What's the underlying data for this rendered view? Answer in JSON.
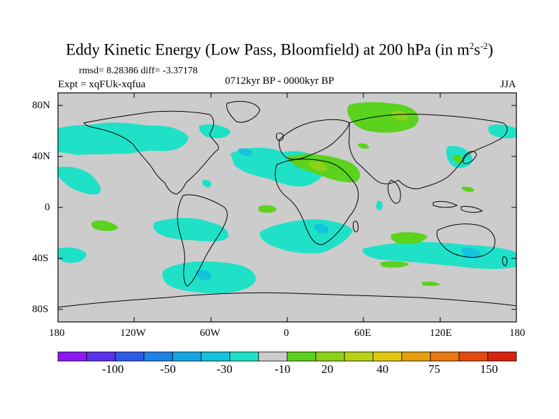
{
  "title": {
    "main": "Eddy Kinetic Energy (Low Pass, Bloomfield) at 200 hPa (in m",
    "sup1": "2",
    "mid": "s",
    "sup2": "-2",
    "close": ")"
  },
  "stats": "rmsd= 8.28386 diff= -3.37178",
  "experiment": "Expt = xqFUk-xqfua",
  "period": "0712kyr BP - 0000kyr BP",
  "season": "JJA",
  "lat_labels": [
    "80N",
    "40N",
    "0",
    "40S",
    "80S"
  ],
  "lon_labels": [
    "180",
    "120W",
    "60W",
    "0",
    "60E",
    "120E",
    "180"
  ],
  "colorbar": {
    "colors": [
      "#8c19f0",
      "#5a32eb",
      "#2d5ae6",
      "#1e82e6",
      "#14a5e1",
      "#14c3dc",
      "#1ee1c8",
      "#cccccc",
      "#5ad21e",
      "#8cd219",
      "#b9d214",
      "#e1c80f",
      "#e6a00f",
      "#e6780f",
      "#e14b0f",
      "#d7230f"
    ],
    "labels": [
      "-100",
      "-50",
      "-30",
      "-10",
      "20",
      "40",
      "75",
      "150"
    ]
  },
  "legend_colors": {
    "land_bg": "#cccccc",
    "neg_light": "#1ee1c8",
    "neg_mid": "#14c3dc",
    "pos_green": "#5ad21e",
    "pos_green2": "#8cd219"
  }
}
